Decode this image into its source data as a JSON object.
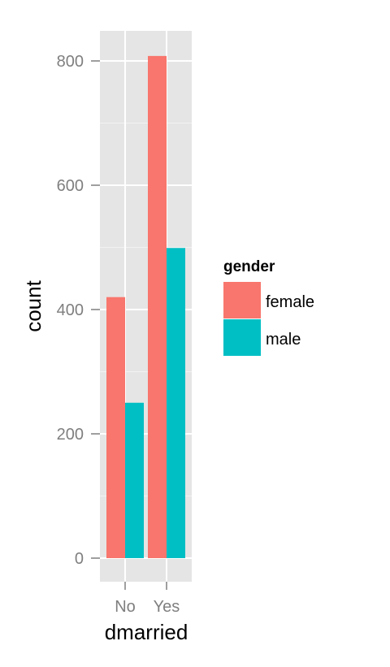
{
  "chart_data": {
    "type": "bar",
    "categories": [
      "No",
      "Yes"
    ],
    "series": [
      {
        "name": "female",
        "values": [
          420,
          808
        ],
        "color": "#F8766D"
      },
      {
        "name": "male",
        "values": [
          250,
          499
        ],
        "color": "#00BFC4"
      }
    ],
    "xlabel": "dmarried",
    "ylabel": "count",
    "y_ticks": [
      0,
      200,
      400,
      600,
      800
    ],
    "ylim": [
      -38,
      850
    ],
    "legend": {
      "title": "gender",
      "position": "right"
    },
    "grid": true,
    "panel_background": "#E5E5E5"
  }
}
